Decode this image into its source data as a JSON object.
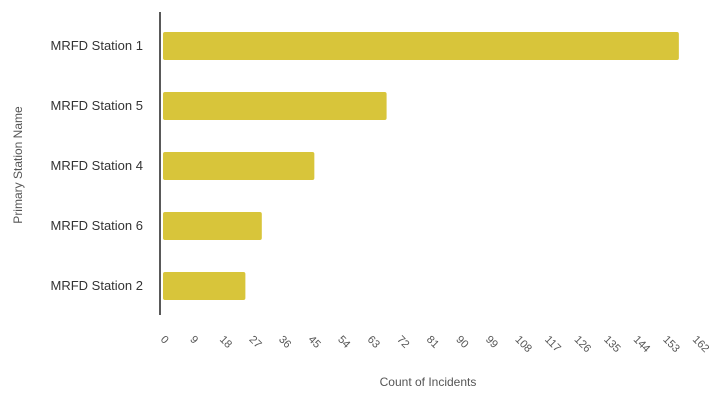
{
  "chart_data": {
    "type": "bar",
    "orientation": "horizontal",
    "title": "",
    "xlabel": "Count of Incidents",
    "ylabel": "Primary Station Name",
    "categories": [
      "MRFD Station 1",
      "MRFD Station 5",
      "MRFD Station 4",
      "MRFD Station 6",
      "MRFD Station 2"
    ],
    "values": [
      158,
      69,
      47,
      31,
      26
    ],
    "xlim": [
      0,
      162
    ],
    "xticks": [
      0,
      9,
      18,
      27,
      36,
      45,
      54,
      63,
      72,
      81,
      90,
      99,
      108,
      117,
      126,
      135,
      144,
      153,
      162
    ],
    "bar_color": "#d8c53a",
    "grid": false,
    "legend": "none"
  }
}
